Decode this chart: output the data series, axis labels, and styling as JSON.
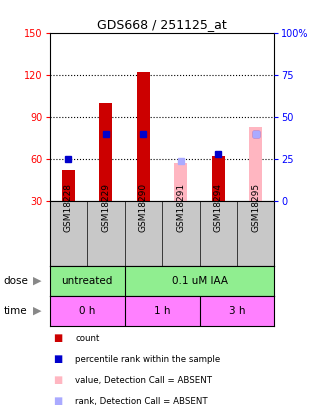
{
  "title": "GDS668 / 251125_at",
  "samples": [
    "GSM18228",
    "GSM18229",
    "GSM18290",
    "GSM18291",
    "GSM18294",
    "GSM18295"
  ],
  "red_bar_values": [
    52,
    100,
    122,
    null,
    62,
    null
  ],
  "pink_bar_values": [
    null,
    null,
    null,
    57,
    null,
    83
  ],
  "blue_sq_values": [
    25,
    40,
    40,
    null,
    28,
    40
  ],
  "light_blue_sq_values": [
    null,
    null,
    null,
    24,
    null,
    40
  ],
  "bar_bottom": 30,
  "ylim_left": [
    30,
    150
  ],
  "ylim_right": [
    0,
    100
  ],
  "yticks_left": [
    30,
    60,
    90,
    120,
    150
  ],
  "yticks_right": [
    0,
    25,
    50,
    75,
    100
  ],
  "ytick_labels_right": [
    "0",
    "25",
    "50",
    "75",
    "100%"
  ],
  "red_color": "#CC0000",
  "pink_color": "#FFB6C1",
  "blue_color": "#0000CC",
  "light_blue_color": "#AAAAFF",
  "bg_color": "#FFFFFF",
  "plot_bg": "#FFFFFF",
  "label_area_bg": "#C8C8C8",
  "dose_bg": "#90EE90",
  "time_bg": "#FF80FF",
  "legend_items": [
    {
      "color": "#CC0000",
      "label": "count"
    },
    {
      "color": "#0000CC",
      "label": "percentile rank within the sample"
    },
    {
      "color": "#FFB6C1",
      "label": "value, Detection Call = ABSENT"
    },
    {
      "color": "#AAAAFF",
      "label": "rank, Detection Call = ABSENT"
    }
  ]
}
